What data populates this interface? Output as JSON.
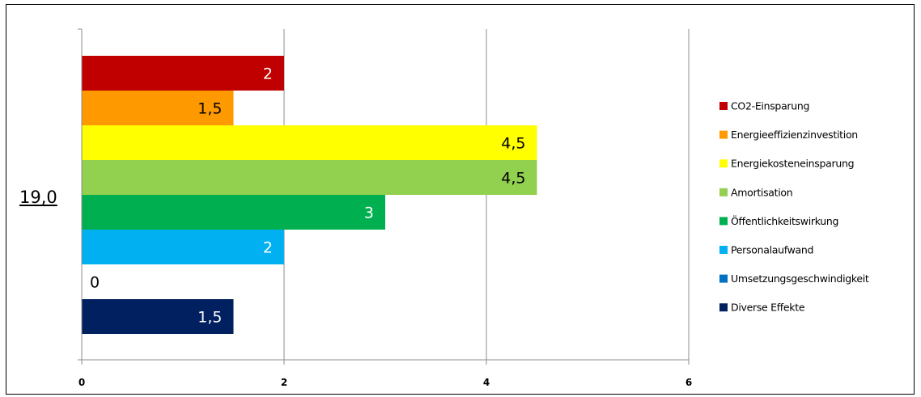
{
  "total": "19,0",
  "chart_data": {
    "type": "bar",
    "orientation": "horizontal",
    "categories": [
      "CO2-Einsparung",
      "Energieeffizienzinvestition",
      "Energiekosteneinsparung",
      "Amortisation",
      "Öffentlichkeitswirkung",
      "Personalaufwand",
      "Umsetzungsgeschwindigkeit",
      "Diverse Effekte"
    ],
    "values": [
      2,
      1.5,
      4.5,
      4.5,
      3,
      2,
      0,
      1.5
    ],
    "value_labels": [
      "2",
      "1,5",
      "4,5",
      "4,5",
      "3",
      "2",
      "0",
      "1,5"
    ],
    "colors": [
      "#c00000",
      "#ff9900",
      "#ffff00",
      "#92d050",
      "#00b050",
      "#00b0f0",
      "#0070c0",
      "#002060"
    ],
    "label_colors": [
      "#ffffff",
      "#000000",
      "#000000",
      "#000000",
      "#ffffff",
      "#ffffff",
      "#000000",
      "#ffffff"
    ],
    "xlim": [
      0,
      6
    ],
    "x_ticks": [
      0,
      2,
      4,
      6
    ],
    "x_tick_labels": [
      "0",
      "2",
      "4",
      "6"
    ],
    "grid": true,
    "legend_position": "right",
    "title": "",
    "xlabel": "",
    "ylabel": ""
  }
}
